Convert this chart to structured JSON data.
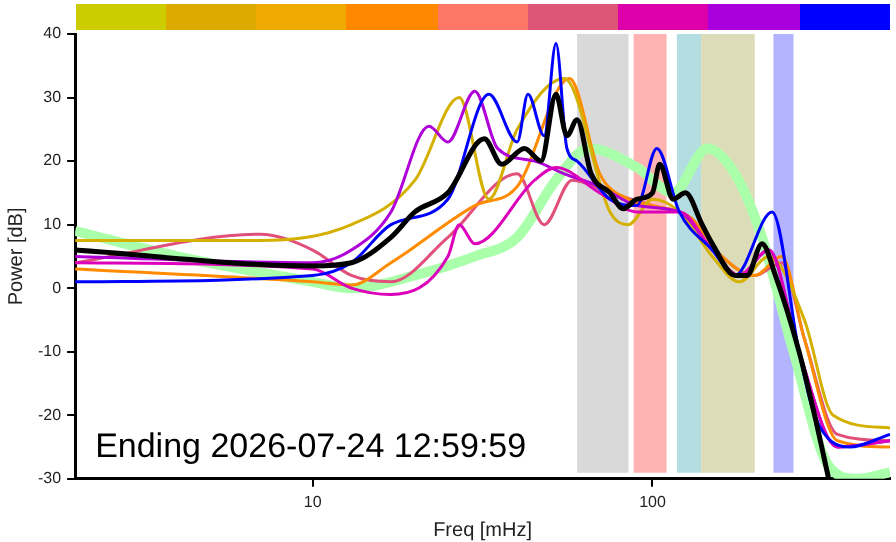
{
  "chart_data": {
    "type": "line",
    "xlabel": "Freq [mHz]",
    "ylabel": "Power [dB]",
    "log": "x",
    "xlim": [
      2,
      500
    ],
    "xticks": [
      10,
      100
    ],
    "ylim": [
      -30,
      40
    ],
    "yticks": [
      -30,
      -20,
      -10,
      0,
      10,
      20,
      30,
      40
    ],
    "grid": false,
    "legend": false,
    "marker": "none",
    "line_style": "solid",
    "annotations": [
      "Ending 2026-07-24 12:59:59"
    ],
    "bands": [
      {
        "axis": "x",
        "from": 60,
        "to": 85,
        "color": "#d9d9d9"
      },
      {
        "axis": "x",
        "from": 88,
        "to": 110,
        "color": "#ffb3b3"
      },
      {
        "axis": "x",
        "from": 118,
        "to": 139,
        "color": "#b3dde0"
      },
      {
        "axis": "x",
        "from": 139,
        "to": 200,
        "color": "#dcdcb8"
      },
      {
        "axis": "x",
        "from": 227,
        "to": 260,
        "color": "#b3b3ff"
      }
    ],
    "series": [
      {
        "color": "#aaffaa",
        "x": [
          2,
          4,
          10,
          13,
          20,
          30,
          40,
          52,
          65,
          90,
          115,
          145,
          175,
          210,
          260,
          330,
          400,
          500
        ],
        "values": [
          9,
          5,
          1,
          0,
          2,
          5,
          8,
          17,
          22,
          19,
          15,
          22,
          18,
          8,
          -10,
          -28,
          -30,
          -29
        ]
      },
      {
        "color": "#e0507a",
        "x": [
          2,
          7,
          10,
          13,
          17,
          25,
          40,
          48,
          58,
          75,
          100,
          130,
          160,
          200,
          240,
          280,
          350,
          500
        ],
        "values": [
          4,
          8.5,
          6,
          2,
          1,
          8,
          18,
          10,
          17,
          15,
          13,
          11,
          5,
          2,
          4,
          -8,
          -23,
          -24
        ]
      },
      {
        "color": "#ff8c00",
        "x": [
          2,
          10,
          13,
          17,
          30,
          40,
          57,
          70,
          85,
          100,
          130,
          160,
          200,
          240,
          280,
          350,
          500
        ],
        "values": [
          3,
          1,
          0.5,
          4,
          13,
          16,
          33,
          18,
          14,
          13,
          11,
          5,
          2,
          5,
          -8,
          -24,
          -25
        ]
      },
      {
        "color": "#d4b000",
        "x": [
          2,
          7,
          13,
          20,
          27,
          33,
          40,
          55,
          75,
          85,
          100,
          120,
          150,
          180,
          220,
          280,
          340,
          500
        ],
        "values": [
          7.5,
          7.5,
          10,
          17,
          30,
          14,
          25,
          33,
          12,
          10,
          14,
          12,
          5,
          1,
          5,
          -5,
          -20,
          -22
        ]
      },
      {
        "color": "#b000d8",
        "x": [
          2,
          10,
          13,
          17,
          22,
          25,
          30,
          35,
          45,
          55,
          70,
          90,
          120,
          150,
          180,
          220,
          270,
          350,
          500
        ],
        "values": [
          5,
          4,
          6,
          12,
          25.5,
          23,
          31,
          22,
          20,
          18,
          16,
          13,
          12,
          6,
          2,
          6,
          -10,
          -25,
          -24
        ]
      },
      {
        "color": "#dd00bb",
        "x": [
          2,
          10,
          13,
          17,
          25,
          27,
          30,
          45,
          52,
          70,
          90,
          120,
          150,
          180,
          220,
          270,
          350,
          500
        ],
        "values": [
          4,
          3,
          0,
          -1,
          5,
          10,
          7,
          17,
          19,
          15,
          12,
          12,
          6,
          2,
          6,
          -10,
          -25,
          -24
        ]
      },
      {
        "color": "#0000ff",
        "x": [
          2,
          10,
          13,
          17,
          25,
          33,
          40,
          43,
          48,
          52,
          56,
          60,
          75,
          90,
          103,
          120,
          150,
          175,
          225,
          270,
          300,
          380,
          500
        ],
        "values": [
          1,
          2,
          4,
          10,
          14,
          30.5,
          23,
          30.5,
          24,
          38.5,
          22,
          20,
          14,
          13,
          22,
          12,
          6,
          2,
          12,
          -10,
          -20,
          -25,
          -23
        ]
      },
      {
        "color": "#000000",
        "x": [
          2,
          10,
          13,
          17,
          20,
          25,
          32,
          36,
          42,
          47,
          52,
          56,
          60,
          66,
          75,
          82,
          90,
          100,
          105,
          115,
          125,
          140,
          150,
          175,
          190,
          210,
          230,
          270,
          300,
          330
        ],
        "values": [
          6,
          3.5,
          4,
          8,
          12,
          15,
          23.5,
          19.5,
          22,
          20,
          30.5,
          24,
          26.5,
          18,
          15,
          12.5,
          14,
          15,
          19.5,
          14,
          15,
          10,
          7,
          2,
          2,
          7,
          2,
          -10,
          -20,
          -30
        ]
      }
    ]
  }
}
